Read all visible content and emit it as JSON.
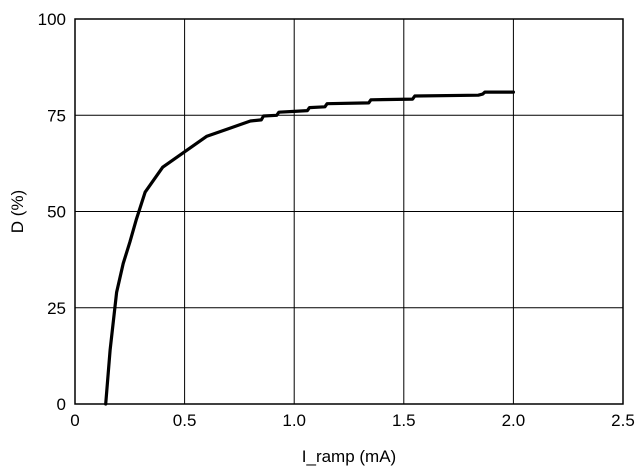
{
  "chart_data": {
    "type": "line",
    "title": "",
    "xlabel": "I_ramp (mA)",
    "ylabel": "D (%)",
    "xlim": [
      0,
      2.5
    ],
    "ylim": [
      0,
      100
    ],
    "grid": true,
    "x_ticks": [
      0,
      0.5,
      1.0,
      1.5,
      2.0,
      2.5
    ],
    "x_tick_labels": [
      "0",
      "0.5",
      "1.0",
      "1.5",
      "2.0",
      "2.5"
    ],
    "y_ticks": [
      0,
      25,
      50,
      75,
      100
    ],
    "y_tick_labels": [
      "0",
      "25",
      "50",
      "75",
      "100"
    ],
    "series": [
      {
        "color": "#000000",
        "x": [
          0.14,
          0.16,
          0.19,
          0.22,
          0.25,
          0.28,
          0.32,
          0.4,
          0.5,
          0.6,
          0.7,
          0.8,
          0.85,
          0.86,
          0.92,
          0.93,
          1.0,
          1.06,
          1.07,
          1.14,
          1.15,
          1.34,
          1.35,
          1.54,
          1.55,
          1.84,
          1.86,
          1.87,
          2.0
        ],
        "y": [
          0,
          14,
          29,
          36.5,
          42,
          48,
          55,
          61.5,
          65.5,
          69.5,
          71.5,
          73.5,
          73.8,
          74.8,
          75,
          75.8,
          76,
          76.2,
          77,
          77.2,
          78,
          78.2,
          79,
          79.2,
          80,
          80.2,
          80.5,
          81,
          81
        ]
      }
    ]
  }
}
